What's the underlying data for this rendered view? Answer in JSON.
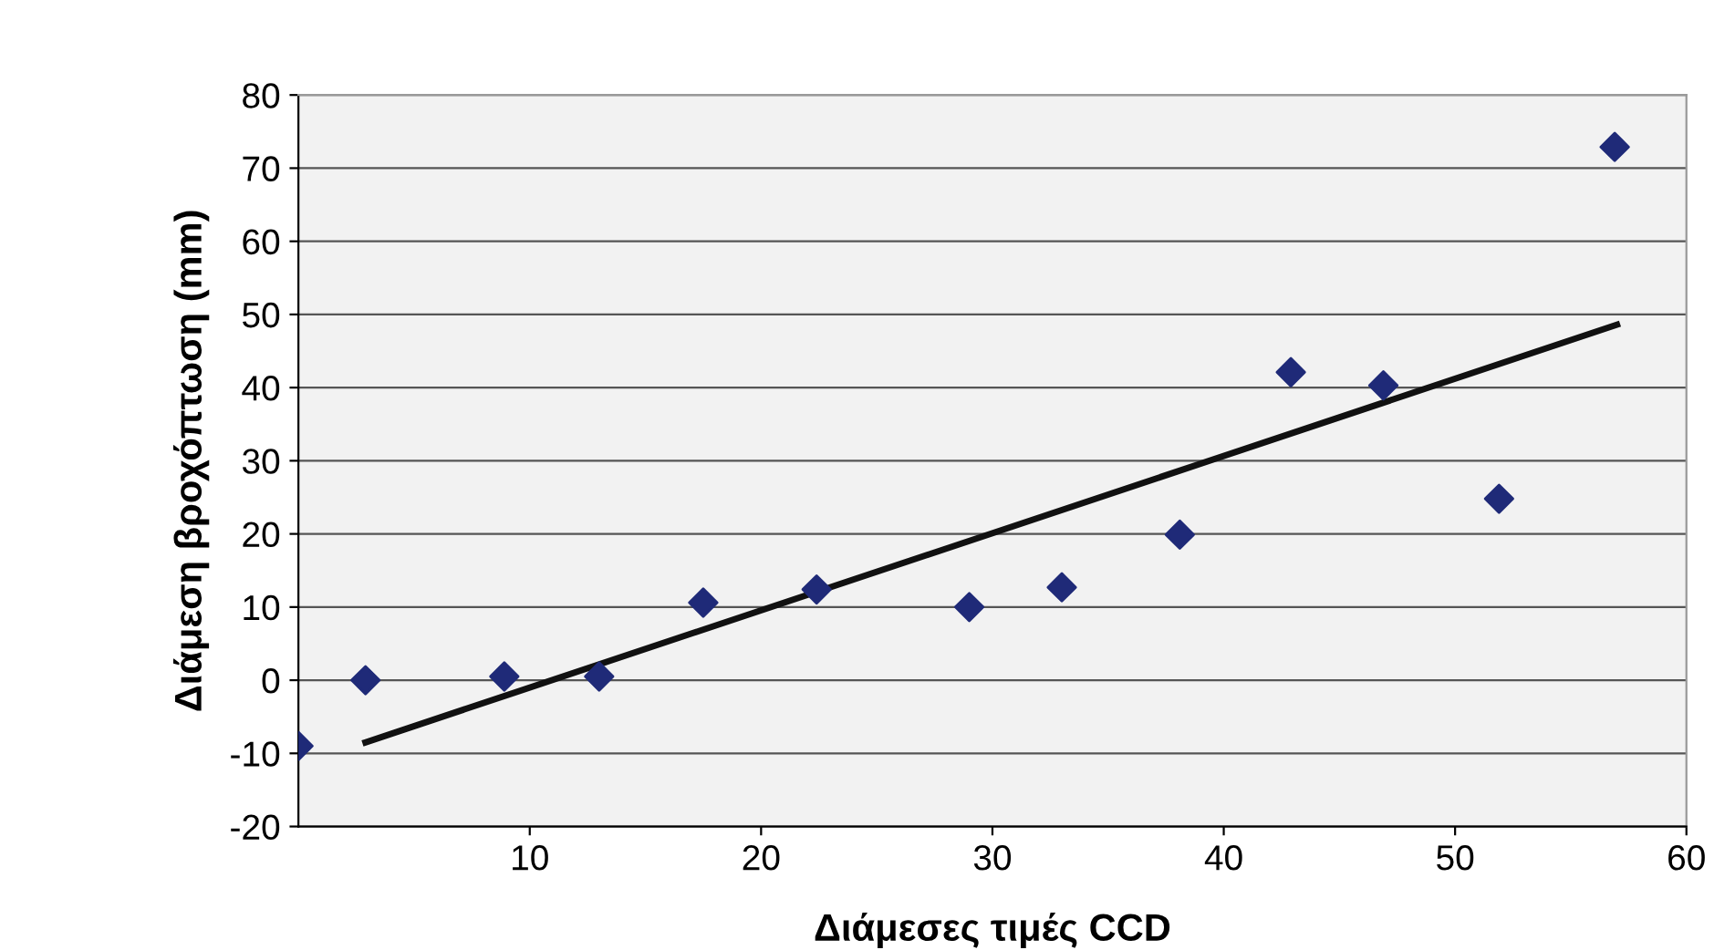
{
  "chart_data": {
    "type": "scatter",
    "xlabel": "Διάμεσες τιμές CCD",
    "ylabel": "Διάμεση βροχόπτωση (mm)",
    "grid": "y",
    "xlim": [
      0,
      60
    ],
    "xticks": [
      10,
      20,
      30,
      40,
      50,
      60
    ],
    "ylim": [
      -20,
      80
    ],
    "yticks": [
      -20,
      -10,
      0,
      10,
      20,
      30,
      40,
      50,
      60,
      70,
      80
    ],
    "series": [
      {
        "marker": "diamond",
        "color": "#1f2a78",
        "x": [
          0,
          2.9,
          8.9,
          13.0,
          17.5,
          22.4,
          29.0,
          33.0,
          38.1,
          42.9,
          46.9,
          51.9,
          56.9
        ],
        "values": [
          -9,
          0,
          0.5,
          0.5,
          10.6,
          12.4,
          10,
          12.7,
          19.9,
          42.1,
          40.3,
          24.8,
          72.9
        ]
      },
      {
        "type": "line",
        "color": "#111111",
        "x": [
          2.9,
          57
        ],
        "values": [
          -8.5,
          48.6
        ]
      }
    ]
  }
}
